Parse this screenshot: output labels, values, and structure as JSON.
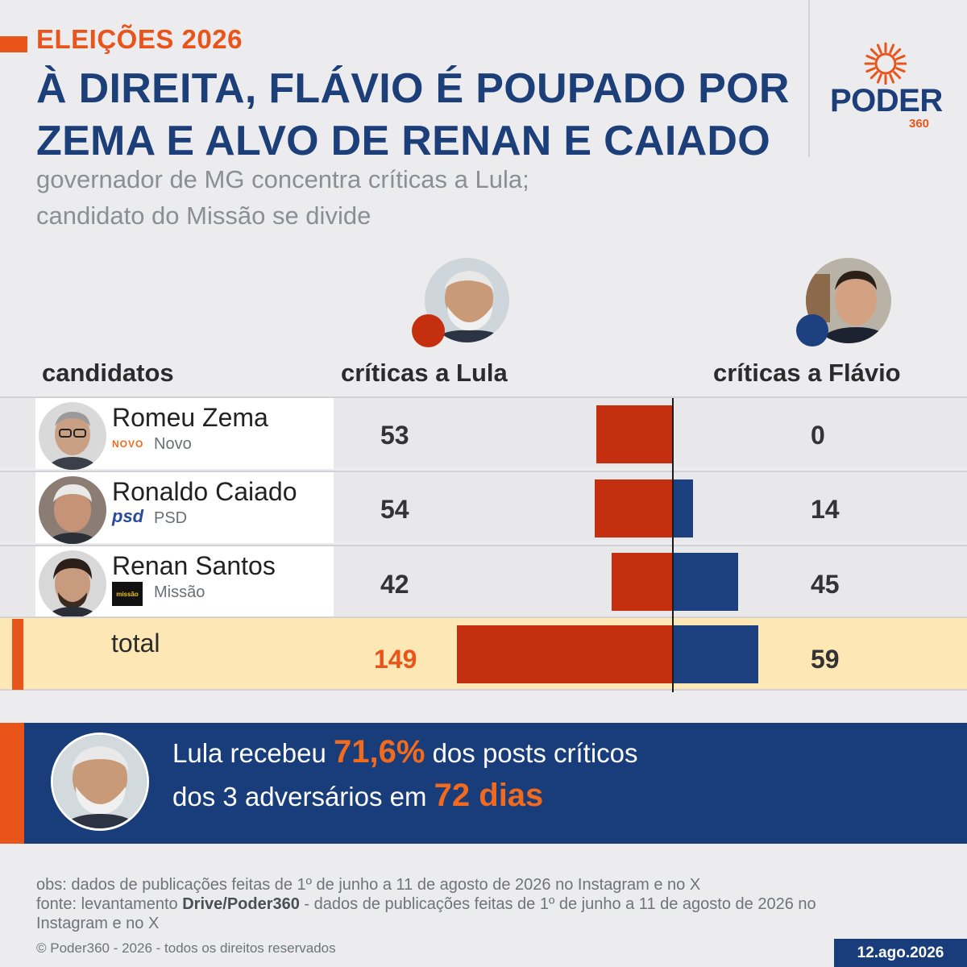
{
  "header": {
    "eyebrow": "ELEIÇÕES 2026",
    "headline_line1": "À DIREITA, FLÁVIO É POUPADO POR",
    "headline_line2": "ZEMA E ALVO DE RENAN E CAIADO",
    "subtitle_line1": "governador de MG concentra críticas a Lula;",
    "subtitle_line2": "candidato do Missão se divide"
  },
  "logo": {
    "word": "PODER",
    "number": "360",
    "icon": "sun-burst-icon"
  },
  "chart_data": {
    "type": "bar",
    "orientation": "diverging-horizontal",
    "column_headers": {
      "candidates": "candidatos",
      "lula": "críticas a Lula",
      "flavio": "críticas a Flávio"
    },
    "categories": [
      "Romeu Zema",
      "Ronaldo Caiado",
      "Renan Santos",
      "total"
    ],
    "parties": [
      {
        "logo_text": "NOVO",
        "name": "Novo"
      },
      {
        "logo_text": "psd",
        "name": "PSD"
      },
      {
        "logo_text": "missão",
        "name": "Missão"
      }
    ],
    "series": [
      {
        "target": "Lula",
        "color": "#c4300f",
        "values": [
          53,
          54,
          42,
          149
        ]
      },
      {
        "target": "Flávio",
        "color": "#1c4080",
        "values": [
          0,
          14,
          45,
          59
        ]
      }
    ],
    "total_label": "total",
    "colors": {
      "lula": "#c4300f",
      "flavio": "#1c4080",
      "accent": "#e8541a",
      "total_row": "#fde7b5",
      "headline": "#1c3f7a"
    }
  },
  "banner": {
    "line1_pre": "Lula recebeu ",
    "line1_em": "71,6%",
    "line1_post": " dos posts críticos",
    "line2_pre": "dos 3 adversários em ",
    "line2_em": "72 dias"
  },
  "footer": {
    "obs": "obs: dados de publicações feitas de 1º de junho a 11 de agosto de 2026 no Instagram e no X",
    "fonte_pre": "fonte: levantamento ",
    "fonte_bold": "Drive/Poder360",
    "fonte_post": " - dados de publicações feitas de 1º de junho a 11 de agosto de 2026 no",
    "fonte_line2": "Instagram e no X",
    "copyright": "© Poder360 - 2026 - todos os direitos reservados",
    "date": "12.ago.2026"
  }
}
